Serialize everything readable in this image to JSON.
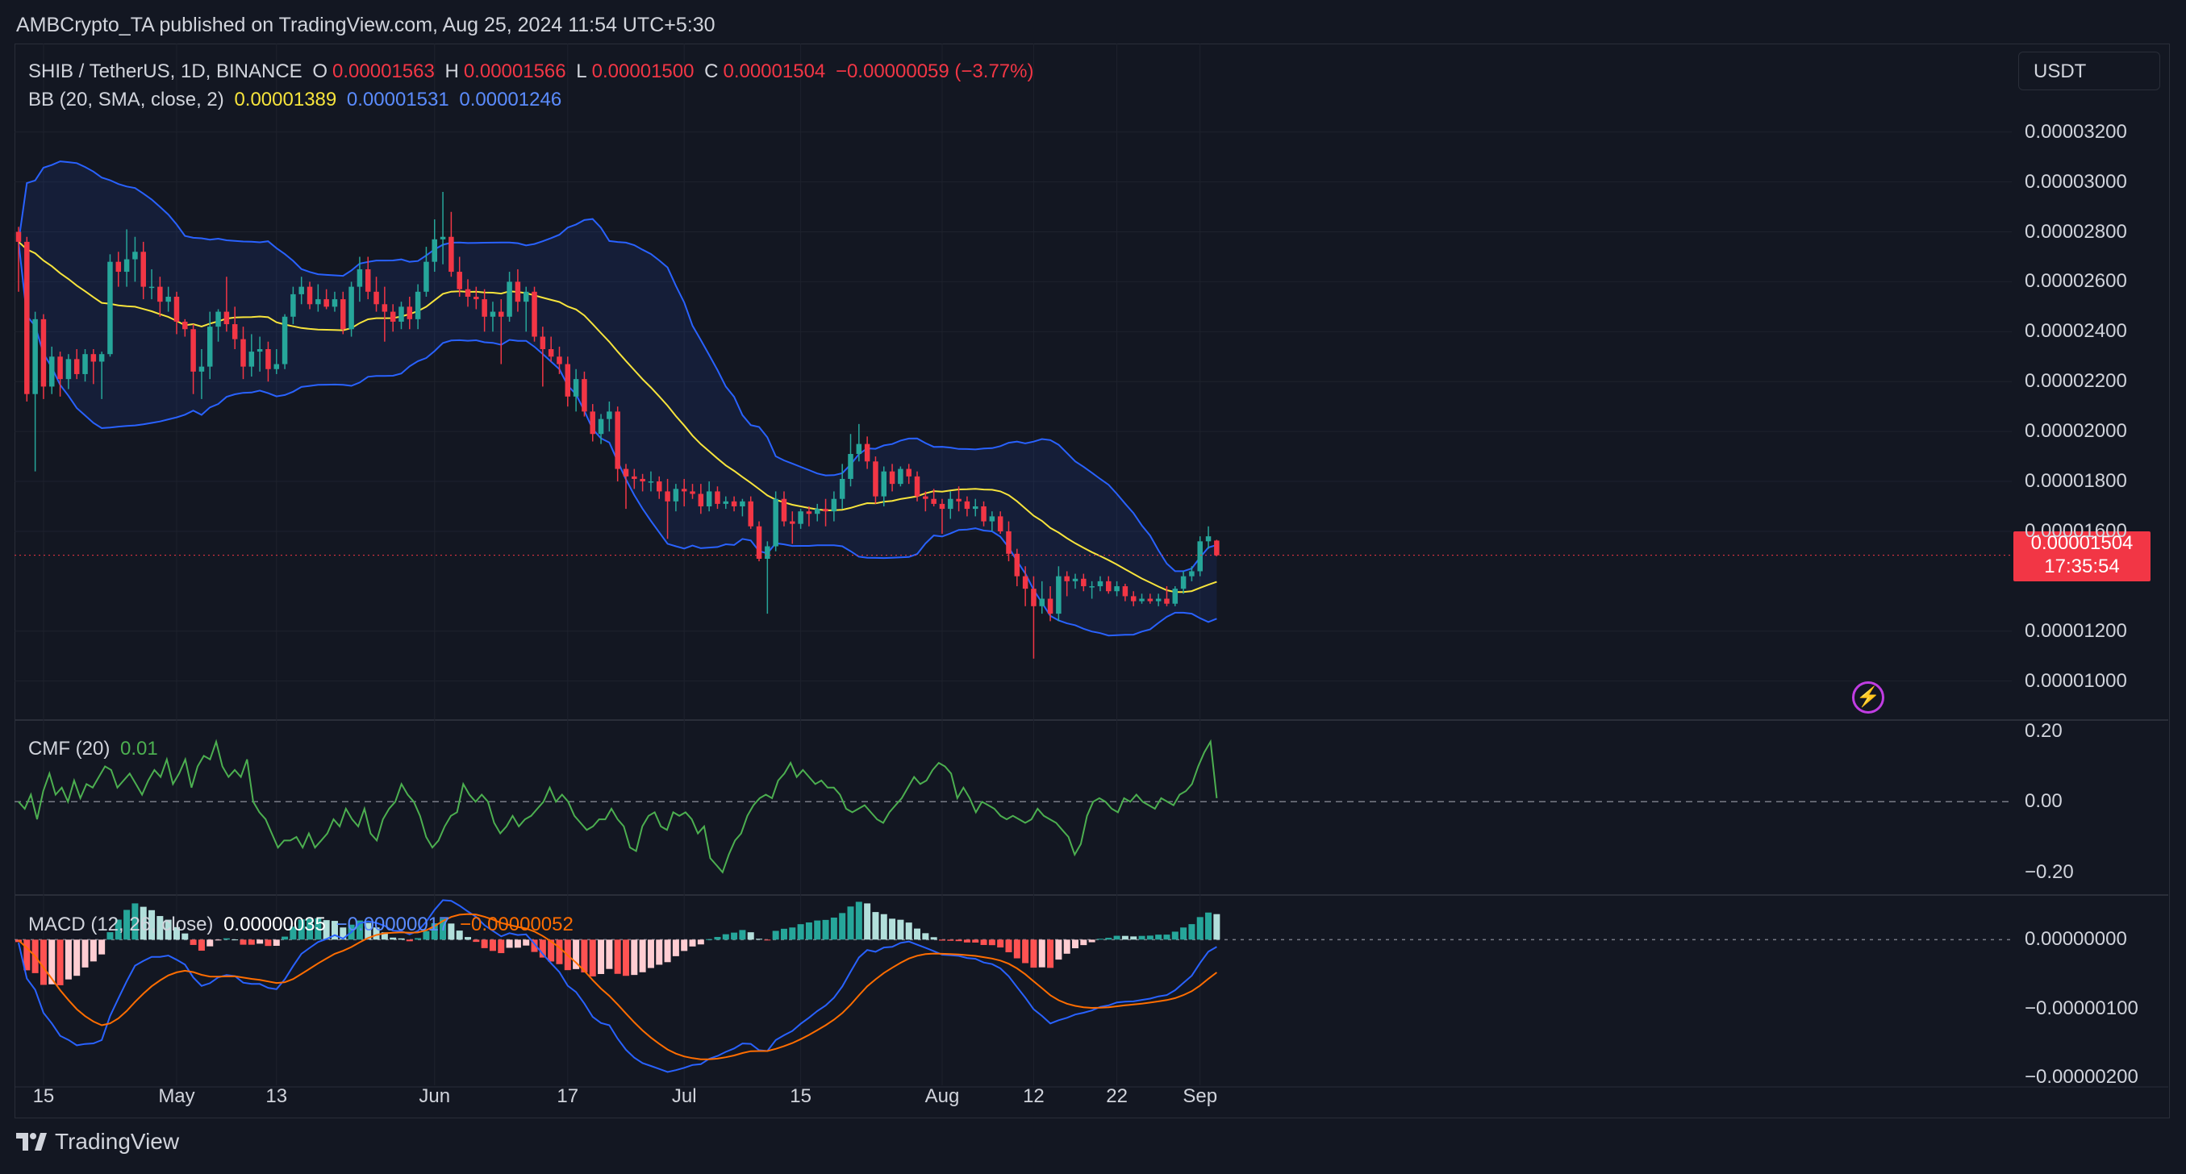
{
  "header": {
    "published_line": "AMBCrypto_TA published on TradingView.com, Aug 25, 2024 11:54 UTC+5:30"
  },
  "legend": {
    "symbol": "SHIB / TetherUS, 1D, BINANCE",
    "o_label": "O",
    "o_value": "0.00001563",
    "h_label": "H",
    "h_value": "0.00001566",
    "l_label": "L",
    "l_value": "0.00001500",
    "c_label": "C",
    "c_value": "0.00001504",
    "change": "−0.00000059 (−3.77%)",
    "bb_label": "BB (20, SMA, close, 2)",
    "bb_basis": "0.00001389",
    "bb_upper": "0.00001531",
    "bb_lower": "0.00001246",
    "cmf_label": "CMF (20)",
    "cmf_value": "0.01",
    "macd_label": "MACD (12, 26, close)",
    "macd_hist": "0.00000035",
    "macd_line": "−0.00000017",
    "macd_signal": "−0.00000052"
  },
  "currency": "USDT",
  "last_price": {
    "value": "0.00001504",
    "countdown": "17:35:54"
  },
  "footer": {
    "brand": "TradingView"
  },
  "colors": {
    "background": "#131722",
    "up": "#26a69a",
    "down": "#f23645",
    "bb_basis": "#f7e43c",
    "bb_band": "#2962ff",
    "cmf": "#4caf50",
    "macd": "#2962ff",
    "signal": "#ff6d00"
  },
  "chart_data": [
    {
      "type": "candlestick",
      "title": "SHIB / TetherUS, 1D, BINANCE",
      "price_axis_ticks": [
        "0.00003200",
        "0.00003000",
        "0.00002800",
        "0.00002600",
        "0.00002400",
        "0.00002200",
        "0.00002000",
        "0.00001800",
        "0.00001600",
        "0.00001200",
        "0.00001000"
      ],
      "price_range": [
        8.6e-06,
        3.38e-05
      ],
      "x_ticks": [
        "15",
        "May",
        "13",
        "Jun",
        "17",
        "Jul",
        "15",
        "Aug",
        "12",
        "22",
        "Sep"
      ],
      "start_date": "2024-04-12",
      "ohlc": [
        [
          2.8e-05,
          2.82e-05,
          2.56e-05,
          2.76e-05
        ],
        [
          2.76e-05,
          2.78e-05,
          2.12e-05,
          2.15e-05
        ],
        [
          2.15e-05,
          2.48e-05,
          1.84e-05,
          2.45e-05
        ],
        [
          2.45e-05,
          2.47e-05,
          2.13e-05,
          2.18e-05
        ],
        [
          2.18e-05,
          2.34e-05,
          2.15e-05,
          2.3e-05
        ],
        [
          2.3e-05,
          2.32e-05,
          2.14e-05,
          2.21e-05
        ],
        [
          2.21e-05,
          2.31e-05,
          2.17e-05,
          2.29e-05
        ],
        [
          2.29e-05,
          2.33e-05,
          2.21e-05,
          2.23e-05
        ],
        [
          2.23e-05,
          2.33e-05,
          2.2e-05,
          2.31e-05
        ],
        [
          2.31e-05,
          2.33e-05,
          2.19e-05,
          2.28e-05
        ],
        [
          2.28e-05,
          2.32e-05,
          2.13e-05,
          2.31e-05
        ],
        [
          2.31e-05,
          2.71e-05,
          2.3e-05,
          2.68e-05
        ],
        [
          2.68e-05,
          2.72e-05,
          2.58e-05,
          2.64e-05
        ],
        [
          2.64e-05,
          2.81e-05,
          2.58e-05,
          2.69e-05
        ],
        [
          2.69e-05,
          2.78e-05,
          2.6e-05,
          2.72e-05
        ],
        [
          2.72e-05,
          2.76e-05,
          2.53e-05,
          2.58e-05
        ],
        [
          2.58e-05,
          2.65e-05,
          2.53e-05,
          2.58e-05
        ],
        [
          2.58e-05,
          2.62e-05,
          2.46e-05,
          2.52e-05
        ],
        [
          2.52e-05,
          2.58e-05,
          2.48e-05,
          2.54e-05
        ],
        [
          2.54e-05,
          2.56e-05,
          2.39e-05,
          2.44e-05
        ],
        [
          2.44e-05,
          2.45e-05,
          2.38e-05,
          2.41e-05
        ],
        [
          2.41e-05,
          2.43e-05,
          2.15e-05,
          2.24e-05
        ],
        [
          2.24e-05,
          2.33e-05,
          2.13e-05,
          2.26e-05
        ],
        [
          2.26e-05,
          2.48e-05,
          2.21e-05,
          2.42e-05
        ],
        [
          2.42e-05,
          2.49e-05,
          2.36e-05,
          2.48e-05
        ],
        [
          2.48e-05,
          2.62e-05,
          2.4e-05,
          2.43e-05
        ],
        [
          2.43e-05,
          2.5e-05,
          2.33e-05,
          2.37e-05
        ],
        [
          2.37e-05,
          2.42e-05,
          2.21e-05,
          2.26e-05
        ],
        [
          2.26e-05,
          2.39e-05,
          2.22e-05,
          2.32e-05
        ],
        [
          2.32e-05,
          2.38e-05,
          2.24e-05,
          2.33e-05
        ],
        [
          2.33e-05,
          2.36e-05,
          2.2e-05,
          2.25e-05
        ],
        [
          2.25e-05,
          2.33e-05,
          2.23e-05,
          2.27e-05
        ],
        [
          2.27e-05,
          2.47e-05,
          2.25e-05,
          2.46e-05
        ],
        [
          2.46e-05,
          2.58e-05,
          2.43e-05,
          2.55e-05
        ],
        [
          2.55e-05,
          2.62e-05,
          2.51e-05,
          2.58e-05
        ],
        [
          2.58e-05,
          2.6e-05,
          2.49e-05,
          2.51e-05
        ],
        [
          2.51e-05,
          2.59e-05,
          2.48e-05,
          2.53e-05
        ],
        [
          2.53e-05,
          2.57e-05,
          2.49e-05,
          2.5e-05
        ],
        [
          2.5e-05,
          2.56e-05,
          2.48e-05,
          2.53e-05
        ],
        [
          2.53e-05,
          2.56e-05,
          2.39e-05,
          2.41e-05
        ],
        [
          2.41e-05,
          2.6e-05,
          2.38e-05,
          2.58e-05
        ],
        [
          2.58e-05,
          2.7e-05,
          2.52e-05,
          2.65e-05
        ],
        [
          2.65e-05,
          2.7e-05,
          2.53e-05,
          2.56e-05
        ],
        [
          2.56e-05,
          2.62e-05,
          2.48e-05,
          2.51e-05
        ],
        [
          2.51e-05,
          2.58e-05,
          2.36e-05,
          2.48e-05
        ],
        [
          2.48e-05,
          2.51e-05,
          2.4e-05,
          2.44e-05
        ],
        [
          2.44e-05,
          2.52e-05,
          2.41e-05,
          2.5e-05
        ],
        [
          2.5e-05,
          2.54e-05,
          2.41e-05,
          2.45e-05
        ],
        [
          2.45e-05,
          2.59e-05,
          2.41e-05,
          2.56e-05
        ],
        [
          2.56e-05,
          2.74e-05,
          2.54e-05,
          2.68e-05
        ],
        [
          2.68e-05,
          2.85e-05,
          2.64e-05,
          2.77e-05
        ],
        [
          2.77e-05,
          2.96e-05,
          2.67e-05,
          2.78e-05
        ],
        [
          2.78e-05,
          2.88e-05,
          2.62e-05,
          2.64e-05
        ],
        [
          2.64e-05,
          2.7e-05,
          2.54e-05,
          2.57e-05
        ],
        [
          2.57e-05,
          2.61e-05,
          2.5e-05,
          2.54e-05
        ],
        [
          2.54e-05,
          2.58e-05,
          2.49e-05,
          2.53e-05
        ],
        [
          2.53e-05,
          2.57e-05,
          2.4e-05,
          2.46e-05
        ],
        [
          2.46e-05,
          2.52e-05,
          2.4e-05,
          2.48e-05
        ],
        [
          2.48e-05,
          2.53e-05,
          2.27e-05,
          2.46e-05
        ],
        [
          2.46e-05,
          2.64e-05,
          2.44e-05,
          2.6e-05
        ],
        [
          2.6e-05,
          2.65e-05,
          2.48e-05,
          2.52e-05
        ],
        [
          2.52e-05,
          2.58e-05,
          2.4e-05,
          2.56e-05
        ],
        [
          2.56e-05,
          2.58e-05,
          2.36e-05,
          2.38e-05
        ],
        [
          2.38e-05,
          2.42e-05,
          2.18e-05,
          2.33e-05
        ],
        [
          2.33e-05,
          2.38e-05,
          2.28e-05,
          2.3e-05
        ],
        [
          2.3e-05,
          2.34e-05,
          2.23e-05,
          2.27e-05
        ],
        [
          2.27e-05,
          2.3e-05,
          2.1e-05,
          2.14e-05
        ],
        [
          2.14e-05,
          2.25e-05,
          2.08e-05,
          2.21e-05
        ],
        [
          2.21e-05,
          2.24e-05,
          2.06e-05,
          2.08e-05
        ],
        [
          2.08e-05,
          2.11e-05,
          1.96e-05,
          1.99e-05
        ],
        [
          1.99e-05,
          2.07e-05,
          1.95e-05,
          2.05e-05
        ],
        [
          2.05e-05,
          2.12e-05,
          2e-05,
          2.08e-05
        ],
        [
          2.08e-05,
          2.1e-05,
          1.8e-05,
          1.85e-05
        ],
        [
          1.85e-05,
          1.87e-05,
          1.69e-05,
          1.82e-05
        ],
        [
          1.82e-05,
          1.85e-05,
          1.77e-05,
          1.81e-05
        ],
        [
          1.81e-05,
          1.83e-05,
          1.76e-05,
          1.8e-05
        ],
        [
          1.8e-05,
          1.84e-05,
          1.76e-05,
          1.8e-05
        ],
        [
          1.8e-05,
          1.82e-05,
          1.73e-05,
          1.76e-05
        ],
        [
          1.76e-05,
          1.81e-05,
          1.57e-05,
          1.72e-05
        ],
        [
          1.72e-05,
          1.79e-05,
          1.68e-05,
          1.77e-05
        ],
        [
          1.77e-05,
          1.81e-05,
          1.7e-05,
          1.76e-05
        ],
        [
          1.76e-05,
          1.79e-05,
          1.73e-05,
          1.75e-05
        ],
        [
          1.75e-05,
          1.79e-05,
          1.67e-05,
          1.7e-05
        ],
        [
          1.7e-05,
          1.8e-05,
          1.68e-05,
          1.76e-05
        ],
        [
          1.76e-05,
          1.78e-05,
          1.69e-05,
          1.71e-05
        ],
        [
          1.71e-05,
          1.74e-05,
          1.69e-05,
          1.72e-05
        ],
        [
          1.72e-05,
          1.74e-05,
          1.68e-05,
          1.7e-05
        ],
        [
          1.7e-05,
          1.73e-05,
          1.66e-05,
          1.72e-05
        ],
        [
          1.72e-05,
          1.74e-05,
          1.61e-05,
          1.62e-05
        ],
        [
          1.62e-05,
          1.64e-05,
          1.48e-05,
          1.49e-05
        ],
        [
          1.49e-05,
          1.56e-05,
          1.27e-05,
          1.54e-05
        ],
        [
          1.54e-05,
          1.76e-05,
          1.52e-05,
          1.73e-05
        ],
        [
          1.73e-05,
          1.76e-05,
          1.62e-05,
          1.64e-05
        ],
        [
          1.64e-05,
          1.68e-05,
          1.55e-05,
          1.63e-05
        ],
        [
          1.63e-05,
          1.69e-05,
          1.61e-05,
          1.68e-05
        ],
        [
          1.68e-05,
          1.7e-05,
          1.62e-05,
          1.67e-05
        ],
        [
          1.67e-05,
          1.71e-05,
          1.64e-05,
          1.69e-05
        ],
        [
          1.69e-05,
          1.73e-05,
          1.62e-05,
          1.68e-05
        ],
        [
          1.68e-05,
          1.76e-05,
          1.64e-05,
          1.73e-05
        ],
        [
          1.73e-05,
          1.87e-05,
          1.69e-05,
          1.81e-05
        ],
        [
          1.81e-05,
          1.99e-05,
          1.78e-05,
          1.91e-05
        ],
        [
          1.91e-05,
          2.03e-05,
          1.88e-05,
          1.95e-05
        ],
        [
          1.95e-05,
          1.98e-05,
          1.85e-05,
          1.88e-05
        ],
        [
          1.88e-05,
          1.9e-05,
          1.71e-05,
          1.74e-05
        ],
        [
          1.74e-05,
          1.86e-05,
          1.7e-05,
          1.84e-05
        ],
        [
          1.84e-05,
          1.87e-05,
          1.76e-05,
          1.79e-05
        ],
        [
          1.79e-05,
          1.86e-05,
          1.78e-05,
          1.85e-05
        ],
        [
          1.85e-05,
          1.87e-05,
          1.79e-05,
          1.82e-05
        ],
        [
          1.82e-05,
          1.84e-05,
          1.72e-05,
          1.74e-05
        ],
        [
          1.74e-05,
          1.76e-05,
          1.68e-05,
          1.73e-05
        ],
        [
          1.73e-05,
          1.77e-05,
          1.7e-05,
          1.71e-05
        ],
        [
          1.71e-05,
          1.73e-05,
          1.59e-05,
          1.69e-05
        ],
        [
          1.69e-05,
          1.76e-05,
          1.65e-05,
          1.73e-05
        ],
        [
          1.73e-05,
          1.78e-05,
          1.68e-05,
          1.72e-05
        ],
        [
          1.72e-05,
          1.74e-05,
          1.66e-05,
          1.69e-05
        ],
        [
          1.69e-05,
          1.73e-05,
          1.66e-05,
          1.7e-05
        ],
        [
          1.7e-05,
          1.72e-05,
          1.62e-05,
          1.64e-05
        ],
        [
          1.64e-05,
          1.68e-05,
          1.6e-05,
          1.66e-05
        ],
        [
          1.66e-05,
          1.68e-05,
          1.59e-05,
          1.6e-05
        ],
        [
          1.6e-05,
          1.64e-05,
          1.48e-05,
          1.51e-05
        ],
        [
          1.51e-05,
          1.53e-05,
          1.38e-05,
          1.42e-05
        ],
        [
          1.42e-05,
          1.46e-05,
          1.3e-05,
          1.37e-05
        ],
        [
          1.37e-05,
          1.42e-05,
          1.09e-05,
          1.3e-05
        ],
        [
          1.3e-05,
          1.4e-05,
          1.27e-05,
          1.33e-05
        ],
        [
          1.33e-05,
          1.38e-05,
          1.24e-05,
          1.27e-05
        ],
        [
          1.27e-05,
          1.46e-05,
          1.24e-05,
          1.42e-05
        ],
        [
          1.42e-05,
          1.44e-05,
          1.34e-05,
          1.4e-05
        ],
        [
          1.4e-05,
          1.43e-05,
          1.37e-05,
          1.41e-05
        ],
        [
          1.41e-05,
          1.43e-05,
          1.36e-05,
          1.38e-05
        ],
        [
          1.38e-05,
          1.4e-05,
          1.33e-05,
          1.38e-05
        ],
        [
          1.38e-05,
          1.42e-05,
          1.36e-05,
          1.4e-05
        ],
        [
          1.4e-05,
          1.42e-05,
          1.35e-05,
          1.36e-05
        ],
        [
          1.36e-05,
          1.4e-05,
          1.34e-05,
          1.38e-05
        ],
        [
          1.38e-05,
          1.39e-05,
          1.32e-05,
          1.34e-05
        ],
        [
          1.34e-05,
          1.36e-05,
          1.3e-05,
          1.32e-05
        ],
        [
          1.32e-05,
          1.35e-05,
          1.31e-05,
          1.33e-05
        ],
        [
          1.33e-05,
          1.35e-05,
          1.31e-05,
          1.32e-05
        ],
        [
          1.32e-05,
          1.35e-05,
          1.3e-05,
          1.33e-05
        ],
        [
          1.33e-05,
          1.38e-05,
          1.3e-05,
          1.31e-05
        ],
        [
          1.31e-05,
          1.38e-05,
          1.3e-05,
          1.37e-05
        ],
        [
          1.37e-05,
          1.44e-05,
          1.35e-05,
          1.42e-05
        ],
        [
          1.42e-05,
          1.46e-05,
          1.4e-05,
          1.44e-05
        ],
        [
          1.44e-05,
          1.58e-05,
          1.42e-05,
          1.56e-05
        ],
        [
          1.56e-05,
          1.62e-05,
          1.53e-05,
          1.58e-05
        ],
        [
          1.563e-05,
          1.566e-05,
          1.5e-05,
          1.504e-05
        ]
      ]
    },
    {
      "type": "line",
      "title": "CMF (20)",
      "y_ticks": [
        "0.20",
        "0.00",
        "−0.20"
      ],
      "ylim": [
        -0.26,
        0.22
      ],
      "values": [
        0.0,
        -0.02,
        0.02,
        -0.05,
        0.03,
        0.08,
        0.02,
        0.04,
        0.0,
        0.06,
        0.01,
        0.05,
        0.04,
        0.07,
        0.1,
        0.09,
        0.04,
        0.06,
        0.08,
        0.05,
        0.02,
        0.06,
        0.09,
        0.07,
        0.12,
        0.05,
        0.08,
        0.12,
        0.04,
        0.1,
        0.13,
        0.12,
        0.17,
        0.1,
        0.07,
        0.09,
        0.07,
        0.12,
        0.0,
        -0.03,
        -0.05,
        -0.09,
        -0.13,
        -0.11,
        -0.11,
        -0.1,
        -0.13,
        -0.09,
        -0.13,
        -0.11,
        -0.09,
        -0.05,
        -0.07,
        -0.02,
        -0.05,
        -0.07,
        -0.02,
        -0.09,
        -0.11,
        -0.05,
        -0.02,
        0.0,
        0.05,
        0.02,
        0.0,
        -0.04,
        -0.1,
        -0.13,
        -0.11,
        -0.07,
        -0.04,
        -0.03,
        0.05,
        0.02,
        0.0,
        0.02,
        0.0,
        -0.06,
        -0.09,
        -0.07,
        -0.04,
        -0.07,
        -0.05,
        -0.04,
        -0.02,
        0.0,
        0.04,
        0.0,
        0.02,
        0.0,
        -0.04,
        -0.06,
        -0.08,
        -0.07,
        -0.05,
        -0.05,
        -0.02,
        -0.05,
        -0.07,
        -0.13,
        -0.14,
        -0.07,
        -0.04,
        -0.03,
        -0.07,
        -0.08,
        -0.03,
        -0.04,
        -0.03,
        -0.05,
        -0.09,
        -0.07,
        -0.16,
        -0.18,
        -0.2,
        -0.15,
        -0.11,
        -0.09,
        -0.04,
        -0.01,
        0.01,
        0.02,
        0.01,
        0.06,
        0.08,
        0.11,
        0.07,
        0.09,
        0.07,
        0.05,
        0.06,
        0.04,
        0.04,
        0.02,
        -0.02,
        -0.03,
        -0.02,
        -0.01,
        -0.03,
        -0.05,
        -0.06,
        -0.03,
        -0.01,
        0.01,
        0.04,
        0.07,
        0.05,
        0.06,
        0.09,
        0.11,
        0.1,
        0.08,
        0.01,
        0.04,
        0.01,
        -0.03,
        0.0,
        -0.01,
        -0.02,
        -0.04,
        -0.05,
        -0.04,
        -0.05,
        -0.06,
        -0.05,
        -0.02,
        -0.04,
        -0.05,
        -0.06,
        -0.08,
        -0.1,
        -0.15,
        -0.12,
        -0.04,
        0.0,
        0.01,
        0.0,
        -0.02,
        -0.03,
        0.01,
        0.0,
        0.02,
        0.0,
        -0.01,
        -0.02,
        0.01,
        0.0,
        -0.01,
        0.02,
        0.03,
        0.05,
        0.1,
        0.14,
        0.17,
        0.01
      ]
    },
    {
      "type": "bar+line",
      "title": "MACD (12, 26, close)",
      "y_ticks": [
        "0.00000000",
        "−0.00000100",
        "−0.00000200"
      ],
      "ylim": [
        -2.1e-06,
        6e-07
      ],
      "note_series": [
        "histogram",
        "macd",
        "signal"
      ]
    }
  ]
}
